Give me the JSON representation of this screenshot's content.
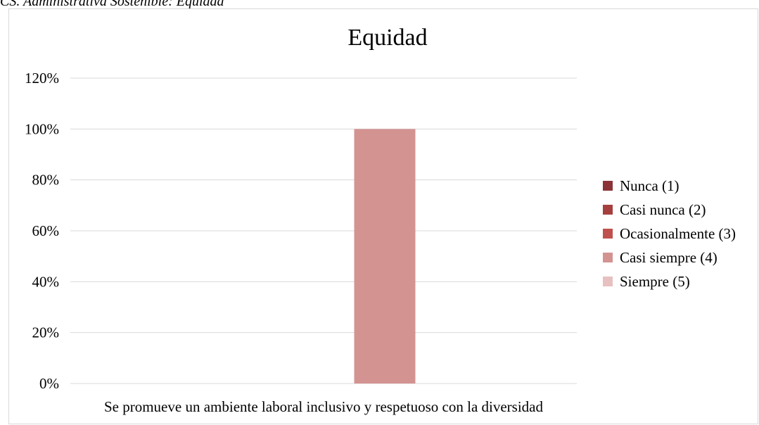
{
  "caption": "CS. Administrativa Sostenible: Equidad",
  "chart_data": {
    "type": "bar",
    "title": "Equidad",
    "categories": [
      "Se promueve un ambiente laboral inclusivo y respetuoso con la diversidad"
    ],
    "series": [
      {
        "name": "Nunca (1)",
        "values": [
          0
        ],
        "color": "#8b3336"
      },
      {
        "name": "Casi nunca  (2)",
        "values": [
          0
        ],
        "color": "#a5403f"
      },
      {
        "name": "Ocasionalmente (3)",
        "values": [
          0
        ],
        "color": "#c0504d"
      },
      {
        "name": "Casi siempre (4)",
        "values": [
          1.0
        ],
        "color": "#d39391"
      },
      {
        "name": "Siempre (5)",
        "values": [
          0
        ],
        "color": "#e6c1c0"
      }
    ],
    "yticks": [
      "0%",
      "20%",
      "40%",
      "60%",
      "80%",
      "100%",
      "120%"
    ],
    "ylim": [
      0,
      1.2
    ],
    "grid": true,
    "legend": "right"
  }
}
